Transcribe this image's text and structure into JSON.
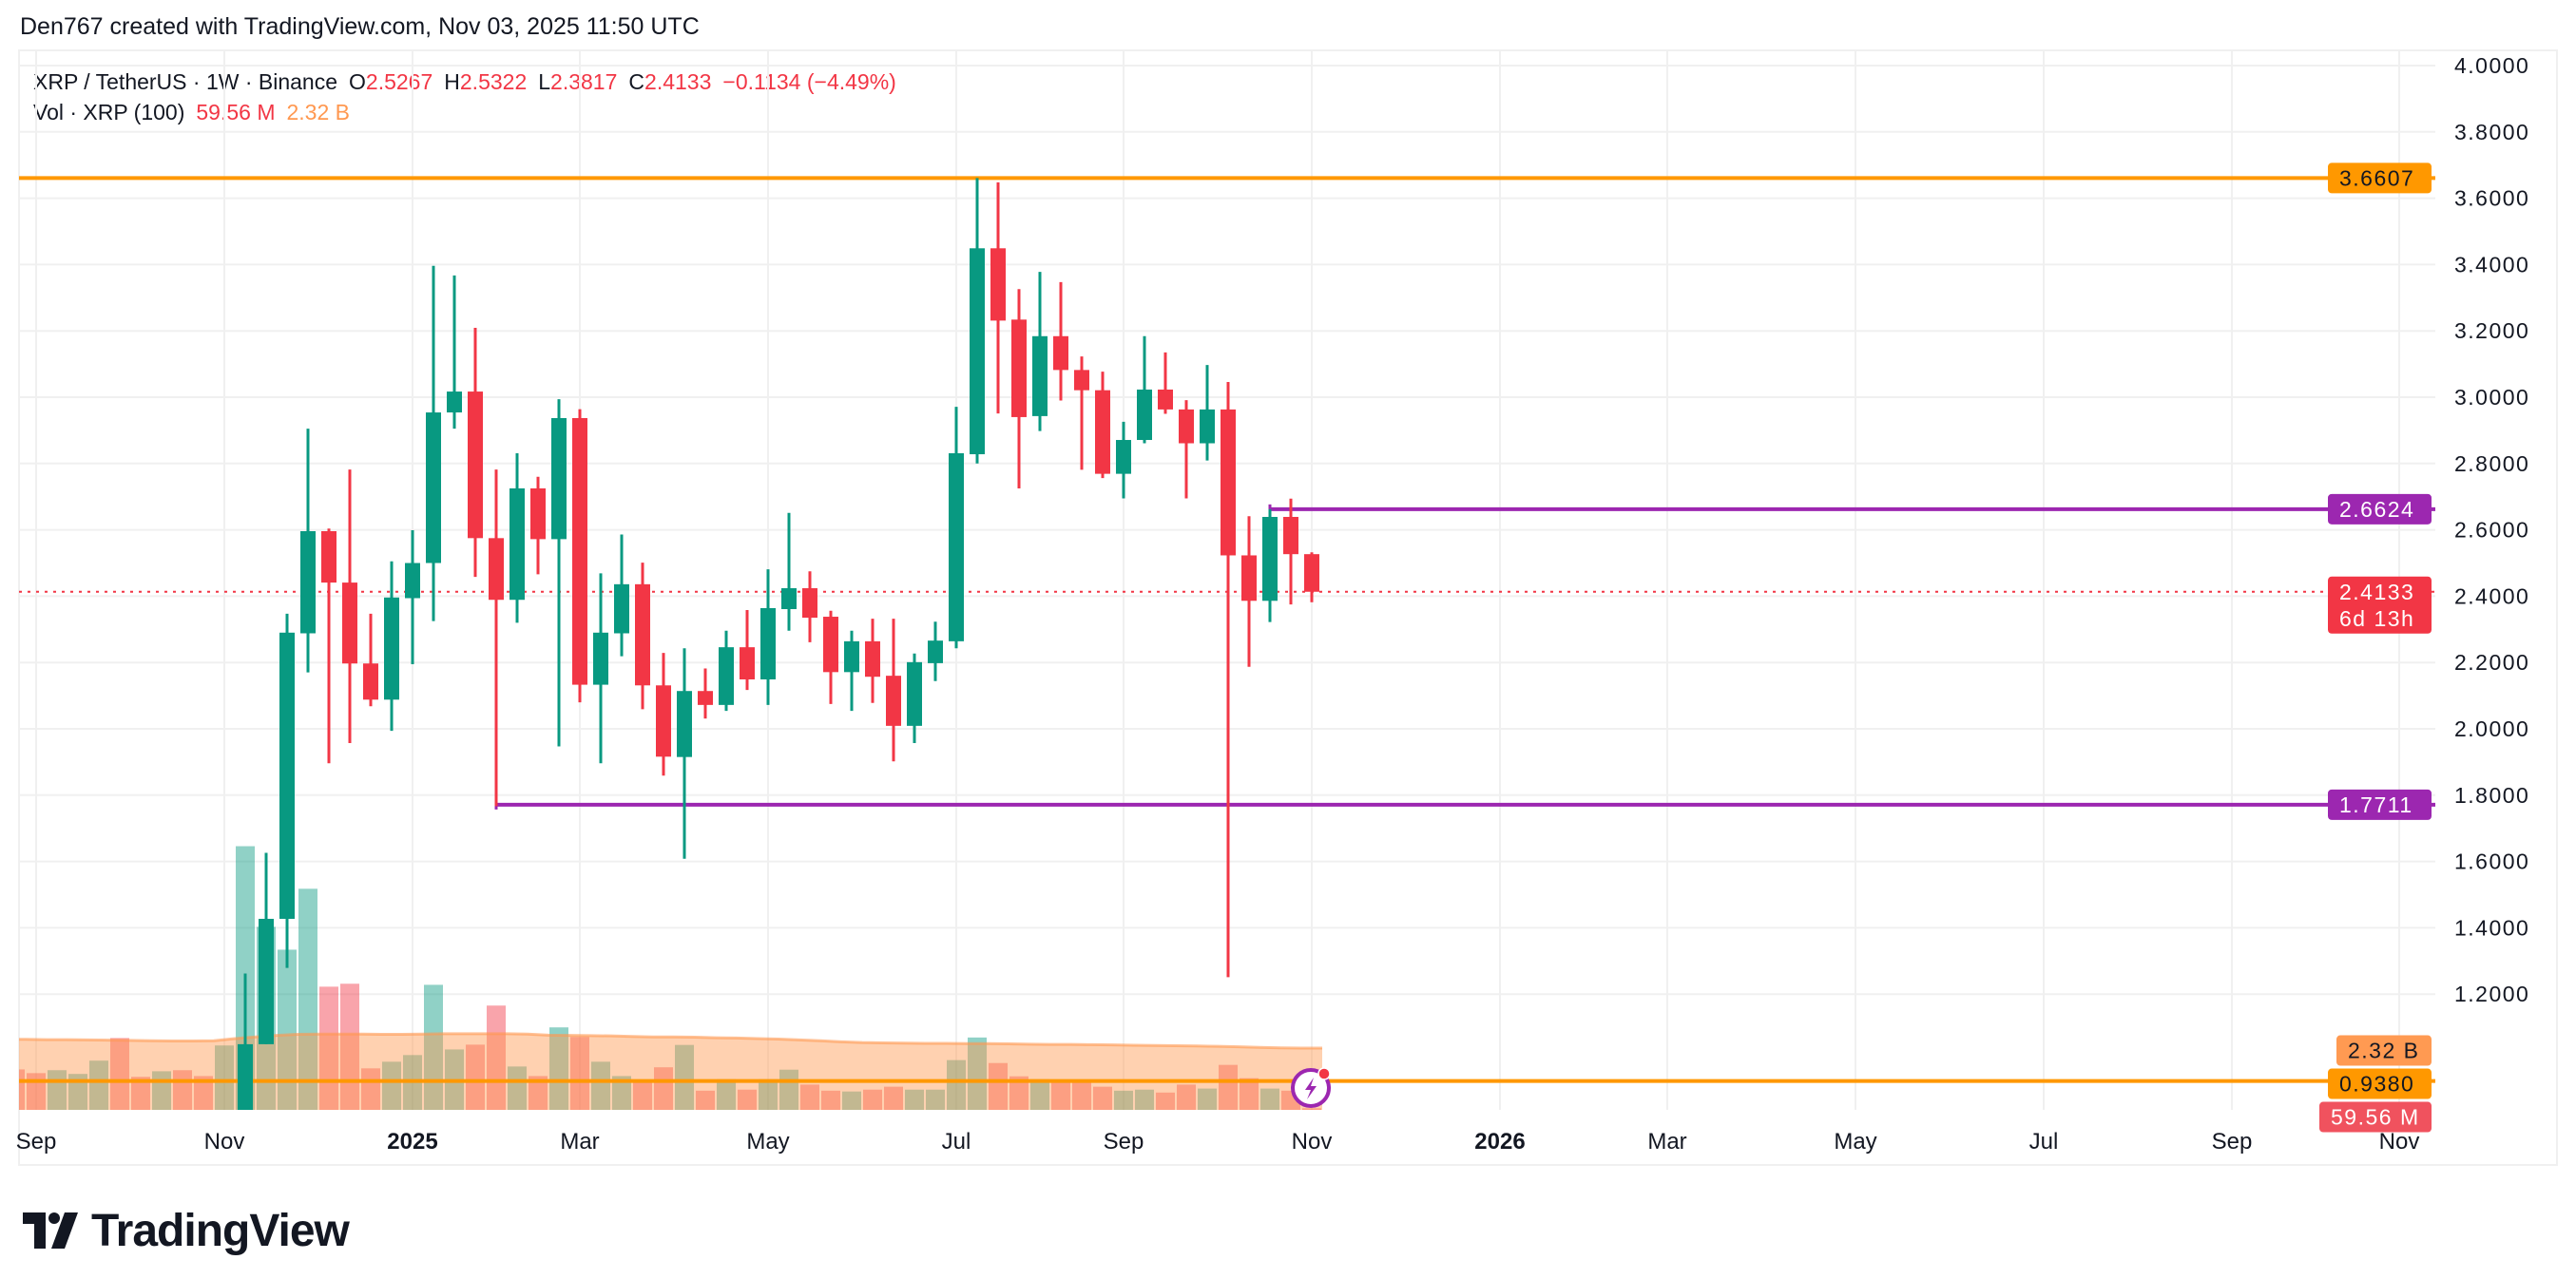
{
  "header": {
    "attribution": "Den767 created with TradingView.com, Nov 03, 2025 11:50 UTC"
  },
  "legend": {
    "symbol": "XRP / TetherUS · 1W · Binance",
    "open_label": "O",
    "open": "2.5267",
    "high_label": "H",
    "high": "2.5322",
    "low_label": "L",
    "low": "2.3817",
    "close_label": "C",
    "close": "2.4133",
    "change": "−0.1134 (−4.49%)",
    "volume_title": "Vol · XRP (100)",
    "volume_value": "59.56 M",
    "volume_ma_value": "2.32 B"
  },
  "logo": {
    "text": "TradingView"
  },
  "colors": {
    "up": "#089981",
    "down": "#F23645",
    "volume_up": "#089981",
    "volume_down": "#F23645",
    "volume_ma": "#FF9850",
    "resistance": "#FF9800",
    "support": "#9C27B0",
    "grid": "#F0F0F0",
    "axis_text": "#131722"
  },
  "chart_data": {
    "type": "candlestick",
    "symbol": "XRP / TetherUS",
    "interval": "1W",
    "exchange": "Binance",
    "ylim": [
      0.846,
      4.0
    ],
    "y_ticks": [
      "4.0000",
      "3.8000",
      "3.6000",
      "3.4000",
      "3.2000",
      "3.0000",
      "2.8000",
      "2.6000",
      "2.4000",
      "2.2000",
      "2.0000",
      "1.8000",
      "1.6000",
      "1.4000",
      "1.2000"
    ],
    "x_ticks": [
      {
        "label": "Sep",
        "date": "2024-09-02",
        "bold": false
      },
      {
        "label": "Nov",
        "date": "2024-11-04",
        "bold": false
      },
      {
        "label": "2025",
        "date": "2025-01-06",
        "bold": true
      },
      {
        "label": "Mar",
        "date": "2025-03-03",
        "bold": false
      },
      {
        "label": "May",
        "date": "2025-05-05",
        "bold": false
      },
      {
        "label": "Jul",
        "date": "2025-07-07",
        "bold": false
      },
      {
        "label": "Sep",
        "date": "2025-09-01",
        "bold": false
      },
      {
        "label": "Nov",
        "date": "2025-11-03",
        "bold": false
      },
      {
        "label": "2026",
        "date": "2026-01-05",
        "bold": true
      },
      {
        "label": "Mar",
        "date": "2026-03-02",
        "bold": false
      },
      {
        "label": "May",
        "date": "2026-05-04",
        "bold": false
      },
      {
        "label": "Jul",
        "date": "2026-07-06",
        "bold": false
      },
      {
        "label": "Sep",
        "date": "2026-09-07",
        "bold": false
      },
      {
        "label": "Nov",
        "date": "2026-11-02",
        "bold": false
      }
    ],
    "candles": [
      [
        "2024-11-11",
        0.56,
        1.262,
        0.55,
        1.049
      ],
      [
        "2024-11-18",
        1.049,
        1.626,
        1.049,
        1.427
      ],
      [
        "2024-11-25",
        1.427,
        2.347,
        1.279,
        2.29
      ],
      [
        "2024-12-02",
        2.288,
        2.905,
        2.17,
        2.596
      ],
      [
        "2024-12-09",
        2.596,
        2.604,
        1.896,
        2.441
      ],
      [
        "2024-12-16",
        2.441,
        2.782,
        1.957,
        2.197
      ],
      [
        "2024-12-23",
        2.197,
        2.347,
        2.068,
        2.088
      ],
      [
        "2024-12-30",
        2.088,
        2.505,
        1.994,
        2.396
      ],
      [
        "2025-01-06",
        2.394,
        2.599,
        2.195,
        2.5
      ],
      [
        "2025-01-13",
        2.5,
        3.396,
        2.325,
        2.954
      ],
      [
        "2025-01-20",
        2.954,
        3.367,
        2.905,
        3.017
      ],
      [
        "2025-01-27",
        3.017,
        3.209,
        2.458,
        2.575
      ],
      [
        "2025-02-03",
        2.575,
        2.782,
        1.767,
        2.389
      ],
      [
        "2025-02-10",
        2.389,
        2.831,
        2.32,
        2.725
      ],
      [
        "2025-02-17",
        2.725,
        2.76,
        2.466,
        2.572
      ],
      [
        "2025-02-24",
        2.572,
        2.994,
        1.947,
        2.937
      ],
      [
        "2025-03-03",
        2.937,
        2.964,
        2.08,
        2.133
      ],
      [
        "2025-03-10",
        2.133,
        2.469,
        1.896,
        2.29
      ],
      [
        "2025-03-17",
        2.288,
        2.586,
        2.219,
        2.436
      ],
      [
        "2025-03-24",
        2.436,
        2.501,
        2.059,
        2.131
      ],
      [
        "2025-03-31",
        2.131,
        2.229,
        1.859,
        1.916
      ],
      [
        "2025-04-07",
        1.915,
        2.243,
        1.608,
        2.114
      ],
      [
        "2025-04-14",
        2.114,
        2.182,
        2.031,
        2.072
      ],
      [
        "2025-04-21",
        2.072,
        2.296,
        2.054,
        2.246
      ],
      [
        "2025-04-28",
        2.246,
        2.358,
        2.117,
        2.149
      ],
      [
        "2025-05-05",
        2.149,
        2.481,
        2.072,
        2.364
      ],
      [
        "2025-05-12",
        2.361,
        2.651,
        2.296,
        2.424
      ],
      [
        "2025-05-19",
        2.424,
        2.475,
        2.261,
        2.335
      ],
      [
        "2025-05-26",
        2.338,
        2.356,
        2.075,
        2.171
      ],
      [
        "2025-06-02",
        2.171,
        2.296,
        2.054,
        2.264
      ],
      [
        "2025-06-09",
        2.264,
        2.332,
        2.078,
        2.157
      ],
      [
        "2025-06-16",
        2.16,
        2.332,
        1.902,
        2.009
      ],
      [
        "2025-06-23",
        2.009,
        2.227,
        1.957,
        2.201
      ],
      [
        "2025-06-30",
        2.198,
        2.323,
        2.144,
        2.266
      ],
      [
        "2025-07-07",
        2.264,
        2.971,
        2.243,
        2.831
      ],
      [
        "2025-07-14",
        2.828,
        3.6607,
        2.8,
        3.449
      ],
      [
        "2025-07-21",
        3.449,
        3.648,
        2.951,
        3.231
      ],
      [
        "2025-07-28",
        3.234,
        3.326,
        2.725,
        2.94
      ],
      [
        "2025-08-04",
        2.943,
        3.378,
        2.898,
        3.184
      ],
      [
        "2025-08-11",
        3.184,
        3.347,
        2.99,
        3.082
      ],
      [
        "2025-08-18",
        3.082,
        3.123,
        2.781,
        3.021
      ],
      [
        "2025-08-25",
        3.021,
        3.077,
        2.756,
        2.769
      ],
      [
        "2025-09-01",
        2.769,
        2.926,
        2.695,
        2.871
      ],
      [
        "2025-09-08",
        2.871,
        3.184,
        2.861,
        3.023
      ],
      [
        "2025-09-15",
        3.023,
        3.135,
        2.95,
        2.963
      ],
      [
        "2025-09-22",
        2.963,
        2.991,
        2.695,
        2.861
      ],
      [
        "2025-09-29",
        2.861,
        3.097,
        2.809,
        2.963
      ],
      [
        "2025-10-06",
        2.963,
        3.046,
        1.251,
        2.523
      ],
      [
        "2025-10-13",
        2.523,
        2.641,
        2.187,
        2.386
      ],
      [
        "2025-10-20",
        2.386,
        2.6624,
        2.322,
        2.639
      ],
      [
        "2025-10-27",
        2.639,
        2.694,
        2.375,
        2.5267
      ],
      [
        "2025-11-03",
        2.5267,
        2.5322,
        2.3817,
        2.4133
      ]
    ],
    "candle_columns": [
      "week",
      "open",
      "high",
      "low",
      "close"
    ],
    "volume": {
      "unit": "B",
      "start_week": "2024-08-26",
      "values": [
        1.52,
        1.38,
        1.49,
        1.35,
        1.85,
        2.7,
        1.24,
        1.45,
        1.49,
        1.27,
        2.42,
        9.91,
        6.88,
        6.02,
        8.31,
        4.63,
        4.74,
        1.56,
        1.81,
        2.06,
        4.7,
        2.27,
        2.45,
        3.92,
        1.63,
        1.27,
        3.1,
        2.74,
        1.81,
        1.27,
        1.1,
        1.6,
        2.44,
        0.72,
        1.15,
        0.76,
        1.15,
        1.51,
        0.95,
        0.72,
        0.69,
        0.76,
        0.87,
        0.76,
        0.76,
        1.87,
        2.72,
        1.76,
        1.26,
        1.15,
        1.12,
        1.08,
        0.87,
        0.72,
        0.76,
        0.65,
        0.95,
        0.8,
        1.69,
        1.19,
        0.8,
        0.72,
        0.06
      ],
      "direction": [
        "down",
        "down",
        "up",
        "up",
        "up",
        "down",
        "down",
        "up",
        "down",
        "down",
        "up",
        "up",
        "up",
        "up",
        "up",
        "down",
        "down",
        "down",
        "up",
        "up",
        "up",
        "up",
        "down",
        "down",
        "up",
        "down",
        "up",
        "down",
        "up",
        "up",
        "down",
        "down",
        "up",
        "down",
        "up",
        "down",
        "up",
        "up",
        "down",
        "down",
        "up",
        "down",
        "down",
        "up",
        "up",
        "up",
        "up",
        "down",
        "down",
        "up",
        "down",
        "down",
        "down",
        "up",
        "up",
        "down",
        "down",
        "up",
        "down",
        "down",
        "up",
        "down",
        "down"
      ],
      "ma_length": 100,
      "ma": [
        2.65,
        2.65,
        2.64,
        2.64,
        2.63,
        2.62,
        2.61,
        2.6,
        2.59,
        2.59,
        2.6,
        2.68,
        2.74,
        2.8,
        2.84,
        2.85,
        2.85,
        2.85,
        2.84,
        2.84,
        2.85,
        2.86,
        2.86,
        2.86,
        2.86,
        2.85,
        2.81,
        2.8,
        2.79,
        2.78,
        2.76,
        2.74,
        2.74,
        2.73,
        2.71,
        2.7,
        2.68,
        2.66,
        2.63,
        2.6,
        2.56,
        2.53,
        2.52,
        2.51,
        2.5,
        2.5,
        2.49,
        2.49,
        2.48,
        2.47,
        2.46,
        2.46,
        2.45,
        2.44,
        2.43,
        2.42,
        2.41,
        2.4,
        2.39,
        2.37,
        2.35,
        2.33,
        2.32
      ]
    },
    "horizontal_lines": [
      {
        "price": 3.6607,
        "color": "#FF9800",
        "start_week": null
      },
      {
        "price": 2.6624,
        "color": "#9C27B0",
        "start_week": "2025-10-20"
      },
      {
        "price": 1.7711,
        "color": "#9C27B0",
        "start_week": "2025-02-03"
      },
      {
        "price": 0.938,
        "color": "#FF9800",
        "start_week": null
      }
    ],
    "current_price": 2.4133,
    "price_labels": [
      {
        "text": "3.6607",
        "price": 3.6607,
        "bg": "#FF9800",
        "fg": "#131722"
      },
      {
        "text": "2.6624",
        "price": 2.6624,
        "bg": "#9C27B0",
        "fg": "#FFFFFF"
      },
      {
        "text": "2.4133",
        "sub": "6d 13h",
        "price": 2.4133,
        "bg": "#F23645",
        "fg": "#FFFFFF"
      },
      {
        "text": "1.7711",
        "price": 1.7711,
        "bg": "#9C27B0",
        "fg": "#FFFFFF"
      },
      {
        "text": "2.32 B",
        "price": 1.03,
        "bg": "#FF9A52",
        "fg": "#131722"
      },
      {
        "text": "0.9380",
        "price": 0.938,
        "bg": "#FF9800",
        "fg": "#131722"
      },
      {
        "text": "59.56 M",
        "price": 0.88,
        "bg": "#F0525E",
        "fg": "#FFFFFF"
      }
    ]
  }
}
